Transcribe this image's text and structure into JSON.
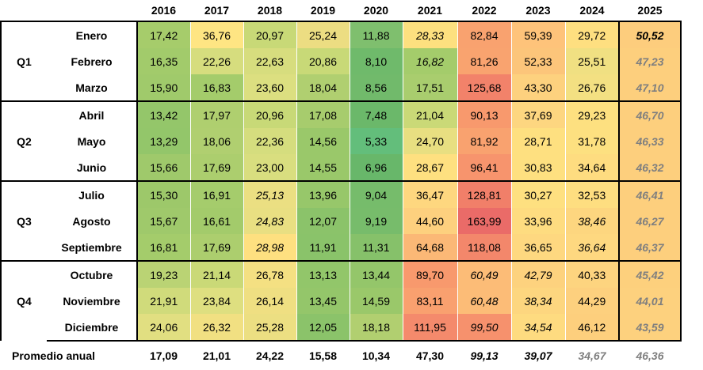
{
  "years": [
    "2016",
    "2017",
    "2018",
    "2019",
    "2020",
    "2021",
    "2022",
    "2023",
    "2024",
    "2025"
  ],
  "quarters": [
    "Q1",
    "Q2",
    "Q3",
    "Q4"
  ],
  "rows": [
    {
      "month": "Enero",
      "values": [
        "17,42",
        "36,76",
        "20,97",
        "25,24",
        "11,88",
        "28,33",
        "82,84",
        "59,39",
        "29,72",
        "50,52"
      ],
      "colors": [
        "#a6cc6b",
        "#fee583",
        "#c8d977",
        "#ecdd82",
        "#7fbf6e",
        "#fde07f",
        "#f9a26f",
        "#fec37a",
        "#fedf80",
        "#fdcd7d"
      ],
      "italic": [
        false,
        false,
        false,
        false,
        false,
        true,
        false,
        false,
        false,
        true
      ]
    },
    {
      "month": "Febrero",
      "values": [
        "16,35",
        "22,26",
        "22,63",
        "20,86",
        "8,10",
        "16,82",
        "81,26",
        "52,33",
        "25,51",
        "47,23"
      ],
      "colors": [
        "#a2cb6b",
        "#d6dd7e",
        "#d7dd7e",
        "#c8d977",
        "#6fba6b",
        "#a4cc6b",
        "#f9a36f",
        "#fcc57a",
        "#f0e082",
        "#fdcf7d"
      ],
      "italic": [
        false,
        false,
        false,
        false,
        false,
        true,
        false,
        false,
        false,
        true
      ]
    },
    {
      "month": "Marzo",
      "values": [
        "15,90",
        "16,83",
        "23,60",
        "18,04",
        "8,56",
        "17,51",
        "125,68",
        "43,30",
        "26,76",
        "47,10"
      ],
      "colors": [
        "#a0ca6b",
        "#a4cc6b",
        "#dcdf80",
        "#b0cf70",
        "#71ba6b",
        "#a9cd6e",
        "#f2826a",
        "#fdd17e",
        "#f3e082",
        "#fdcf7d"
      ],
      "italic": [
        false,
        false,
        false,
        false,
        false,
        false,
        false,
        false,
        false,
        true
      ]
    },
    {
      "month": "Abril",
      "values": [
        "13,42",
        "17,97",
        "20,96",
        "17,08",
        "7,48",
        "21,04",
        "90,13",
        "37,69",
        "29,23",
        "46,70"
      ],
      "colors": [
        "#94c66a",
        "#afcf6f",
        "#c8d977",
        "#a7cc6d",
        "#6bb86a",
        "#cad977",
        "#f8996d",
        "#fdd680",
        "#fde080",
        "#fdcf7d"
      ],
      "italic": [
        false,
        false,
        false,
        false,
        false,
        false,
        false,
        false,
        false,
        true
      ]
    },
    {
      "month": "Mayo",
      "values": [
        "13,29",
        "18,06",
        "22,36",
        "14,56",
        "5,33",
        "24,70",
        "81,92",
        "28,71",
        "31,78",
        "46,33"
      ],
      "colors": [
        "#93c66a",
        "#b0cf70",
        "#d5dd7e",
        "#9ac86a",
        "#63be7b",
        "#e8df81",
        "#f9a26f",
        "#fee080",
        "#fde080",
        "#fdcf7d"
      ],
      "italic": [
        false,
        false,
        false,
        false,
        false,
        false,
        false,
        false,
        false,
        true
      ]
    },
    {
      "month": "Junio",
      "values": [
        "15,66",
        "17,69",
        "23,00",
        "14,55",
        "6,96",
        "28,67",
        "96,41",
        "30,83",
        "34,64",
        "46,32"
      ],
      "colors": [
        "#9fc96b",
        "#acce6e",
        "#d9de7f",
        "#9ac86a",
        "#68b76a",
        "#fee080",
        "#f7946d",
        "#fee080",
        "#fedc80",
        "#fdcf7d"
      ],
      "italic": [
        false,
        false,
        false,
        false,
        false,
        false,
        false,
        false,
        false,
        true
      ]
    },
    {
      "month": "Julio",
      "values": [
        "15,30",
        "16,91",
        "25,13",
        "13,96",
        "9,04",
        "36,47",
        "128,81",
        "30,27",
        "32,53",
        "46,41"
      ],
      "colors": [
        "#9dc86a",
        "#a5cc6c",
        "#ebdf82",
        "#97c76a",
        "#76bc6b",
        "#fed77f",
        "#f17f69",
        "#fee080",
        "#fede80",
        "#fdcf7d"
      ],
      "italic": [
        false,
        false,
        true,
        false,
        false,
        false,
        false,
        false,
        false,
        true
      ]
    },
    {
      "month": "Agosto",
      "values": [
        "15,67",
        "16,61",
        "24,83",
        "12,07",
        "9,19",
        "44,60",
        "163,99",
        "33,96",
        "38,46",
        "46,27"
      ],
      "colors": [
        "#9fc96b",
        "#a3cb6b",
        "#e9df82",
        "#8bc36a",
        "#77bc6b",
        "#fdd07e",
        "#ea6b68",
        "#fedc80",
        "#fdd67f",
        "#fdcf7d"
      ],
      "italic": [
        false,
        false,
        true,
        false,
        false,
        false,
        false,
        false,
        true,
        true
      ]
    },
    {
      "month": "Septiembre",
      "values": [
        "16,81",
        "17,69",
        "28,98",
        "11,91",
        "11,31",
        "64,68",
        "118,08",
        "36,65",
        "36,64",
        "46,37"
      ],
      "colors": [
        "#a4cc6b",
        "#acce6e",
        "#fee080",
        "#8ac36a",
        "#86c16a",
        "#fbb876",
        "#f3876b",
        "#fed880",
        "#fed880",
        "#fdcf7d"
      ],
      "italic": [
        false,
        false,
        true,
        false,
        false,
        false,
        false,
        false,
        true,
        true
      ]
    },
    {
      "month": "Octubre",
      "values": [
        "19,23",
        "21,14",
        "26,78",
        "13,13",
        "13,44",
        "89,70",
        "60,49",
        "42,79",
        "40,33",
        "45,42"
      ],
      "colors": [
        "#bad374",
        "#cad977",
        "#f4e082",
        "#92c66a",
        "#94c66a",
        "#f8996d",
        "#fcbc77",
        "#fdd27e",
        "#fdd47f",
        "#fdd07d"
      ],
      "italic": [
        false,
        false,
        false,
        false,
        false,
        false,
        true,
        true,
        false,
        true
      ]
    },
    {
      "month": "Noviembre",
      "values": [
        "21,91",
        "23,84",
        "26,14",
        "13,45",
        "14,59",
        "83,11",
        "60,48",
        "38,34",
        "44,29",
        "44,01"
      ],
      "colors": [
        "#d0db7b",
        "#dedf80",
        "#efdf82",
        "#94c66a",
        "#9ac86a",
        "#f9a06f",
        "#fcbc77",
        "#fdd67f",
        "#fdd07e",
        "#fdd17e"
      ],
      "italic": [
        false,
        false,
        false,
        false,
        false,
        false,
        true,
        true,
        false,
        true
      ]
    },
    {
      "month": "Diciembre",
      "values": [
        "24,06",
        "26,32",
        "25,28",
        "12,05",
        "18,18",
        "111,95",
        "99,50",
        "34,54",
        "46,12",
        "43,59"
      ],
      "colors": [
        "#e1df81",
        "#f1e082",
        "#ecdf82",
        "#8bc36a",
        "#b1cf70",
        "#f48a6c",
        "#f6916d",
        "#fedb80",
        "#fdcf7d",
        "#fdd17e"
      ],
      "italic": [
        false,
        false,
        false,
        false,
        false,
        false,
        true,
        true,
        false,
        true
      ]
    }
  ],
  "footer": {
    "label": "Promedio anual",
    "values": [
      "17,09",
      "21,01",
      "24,22",
      "15,58",
      "10,34",
      "47,30",
      "99,13",
      "39,07",
      "34,67",
      "46,36"
    ],
    "style": [
      "n",
      "n",
      "n",
      "n",
      "n",
      "n",
      "it",
      "it",
      "gray",
      "gray"
    ]
  }
}
